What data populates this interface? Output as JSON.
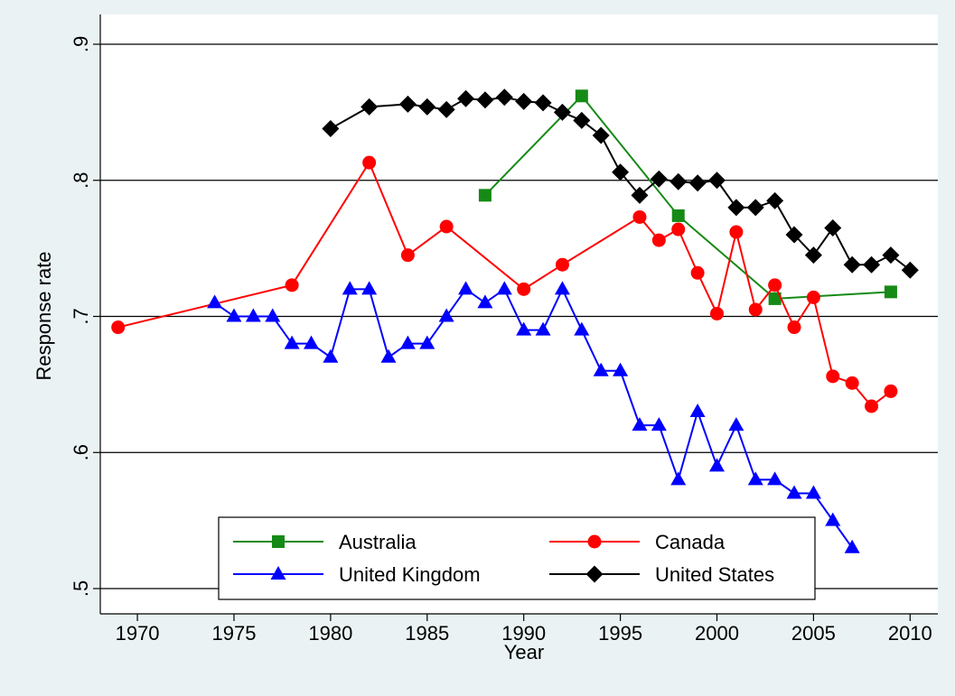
{
  "chart_data": {
    "type": "line",
    "title": "",
    "xlabel": "Year",
    "ylabel": "Response rate",
    "xlim": [
      1968.5,
      2010.5
    ],
    "ylim": [
      0.5,
      0.9
    ],
    "x_ticks": [
      1970,
      1975,
      1980,
      1985,
      1990,
      1995,
      2000,
      2005,
      2010
    ],
    "x_tick_labels": [
      "1970",
      "1975",
      "1980",
      "1985",
      "1990",
      "1995",
      "2000",
      "2005",
      "2010"
    ],
    "y_ticks": [
      0.5,
      0.6,
      0.7,
      0.8,
      0.9
    ],
    "y_tick_labels": [
      ".5",
      ".6",
      ".7",
      ".8",
      ".9"
    ],
    "grid": "horizontal",
    "legend_position": "bottom",
    "series": [
      {
        "name": "Australia",
        "color": "#168a16",
        "marker": "square",
        "x": [
          1988,
          1993,
          1998,
          2003,
          2009
        ],
        "y": [
          0.789,
          0.862,
          0.774,
          0.713,
          0.718
        ]
      },
      {
        "name": "Canada",
        "color": "#ff0000",
        "marker": "circle",
        "x": [
          1969,
          1978,
          1982,
          1984,
          1986,
          1990,
          1992,
          1996,
          1997,
          1998,
          1999,
          2000,
          2001,
          2002,
          2003,
          2004,
          2005,
          2006,
          2007,
          2008,
          2009
        ],
        "y": [
          0.692,
          0.723,
          0.813,
          0.745,
          0.766,
          0.72,
          0.738,
          0.773,
          0.756,
          0.764,
          0.732,
          0.702,
          0.762,
          0.705,
          0.723,
          0.692,
          0.714,
          0.656,
          0.651,
          0.634,
          0.645
        ]
      },
      {
        "name": "United Kingdom",
        "color": "#0000ff",
        "marker": "triangle",
        "x": [
          1974,
          1975,
          1976,
          1977,
          1978,
          1979,
          1980,
          1981,
          1982,
          1983,
          1984,
          1985,
          1986,
          1987,
          1988,
          1989,
          1990,
          1991,
          1992,
          1993,
          1994,
          1995,
          1996,
          1997,
          1998,
          1999,
          2000,
          2001,
          2002,
          2003,
          2004,
          2005,
          2006,
          2007
        ],
        "y": [
          0.71,
          0.7,
          0.7,
          0.7,
          0.68,
          0.68,
          0.67,
          0.72,
          0.72,
          0.67,
          0.68,
          0.68,
          0.7,
          0.72,
          0.71,
          0.72,
          0.69,
          0.69,
          0.72,
          0.69,
          0.66,
          0.66,
          0.62,
          0.62,
          0.58,
          0.63,
          0.59,
          0.62,
          0.58,
          0.58,
          0.57,
          0.57,
          0.55,
          0.53
        ]
      },
      {
        "name": "United States",
        "color": "#000000",
        "marker": "diamond",
        "x": [
          1980,
          1982,
          1984,
          1985,
          1986,
          1987,
          1988,
          1989,
          1990,
          1991,
          1992,
          1993,
          1994,
          1995,
          1996,
          1997,
          1998,
          1999,
          2000,
          2001,
          2002,
          2003,
          2004,
          2005,
          2006,
          2007,
          2008,
          2009,
          2010
        ],
        "y": [
          0.838,
          0.854,
          0.856,
          0.854,
          0.852,
          0.86,
          0.859,
          0.861,
          0.858,
          0.857,
          0.85,
          0.844,
          0.833,
          0.806,
          0.789,
          0.801,
          0.799,
          0.798,
          0.8,
          0.78,
          0.78,
          0.785,
          0.76,
          0.745,
          0.765,
          0.738,
          0.738,
          0.745,
          0.734
        ]
      }
    ]
  }
}
